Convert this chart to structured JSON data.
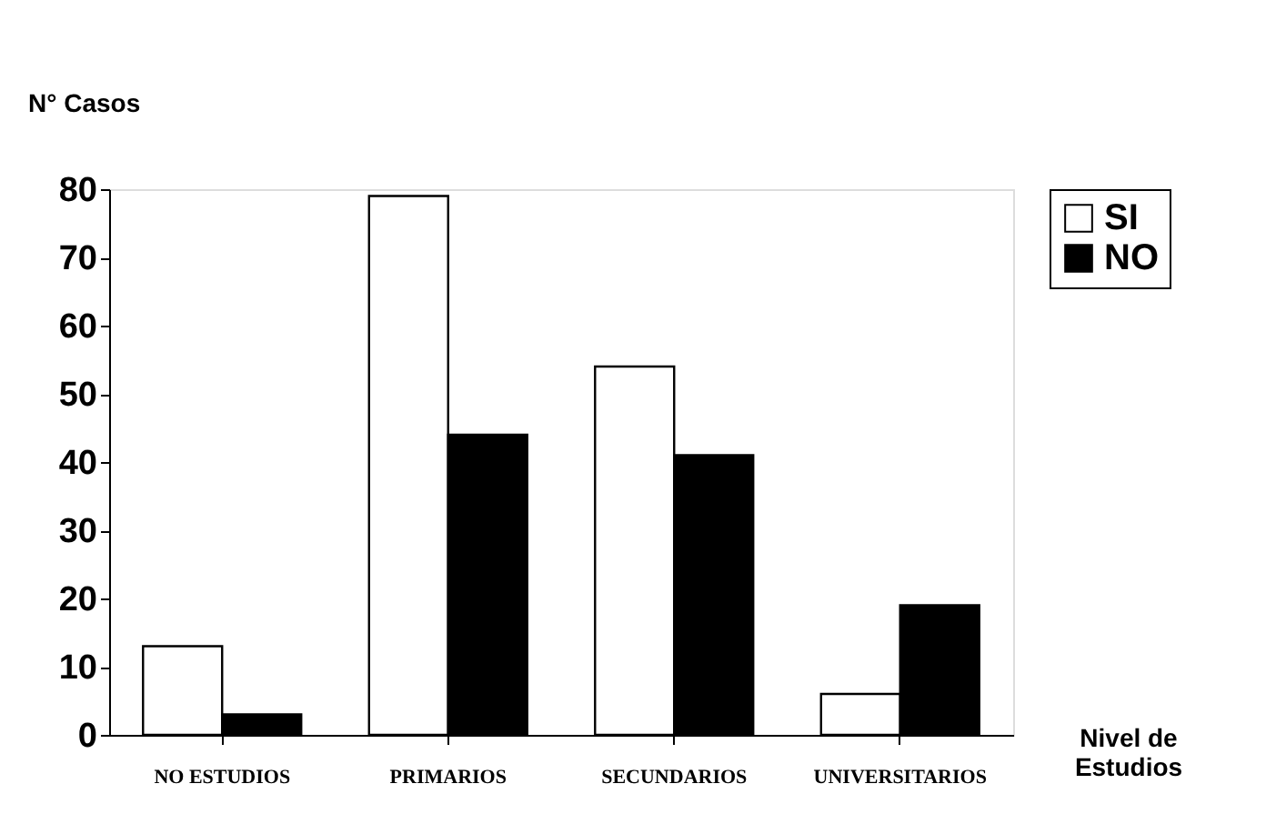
{
  "chart_data": {
    "type": "bar",
    "categories": [
      "NO ESTUDIOS",
      "PRIMARIOS",
      "SECUNDARIOS",
      "UNIVERSITARIOS"
    ],
    "series": [
      {
        "name": "SI",
        "color": "#ffffff",
        "values": [
          13,
          79,
          54,
          6
        ]
      },
      {
        "name": "NO",
        "color": "#000000",
        "values": [
          3,
          44,
          41,
          19
        ]
      }
    ],
    "ylabel": "N° Casos",
    "xlabel": "Nivel de\nEstudios",
    "ylim": [
      0,
      80
    ],
    "yticks": [
      0,
      10,
      20,
      30,
      40,
      50,
      60,
      70,
      80
    ],
    "grid": false,
    "legend": "right"
  }
}
